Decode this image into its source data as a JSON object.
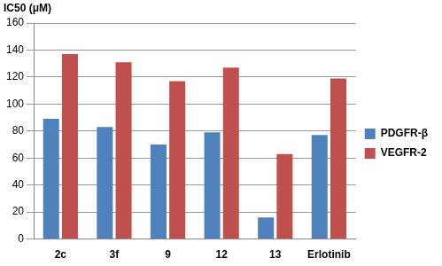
{
  "chart_data": {
    "type": "bar",
    "y_label": "IC50 (μM)",
    "categories": [
      "2c",
      "3f",
      "9",
      "12",
      "13",
      "Erlotinib"
    ],
    "series": [
      {
        "name": "PDGFR-β",
        "color": "#4f81bd",
        "values": [
          89,
          83,
          70,
          79,
          16,
          77
        ]
      },
      {
        "name": "VEGFR-2",
        "color": "#c0504d",
        "values": [
          137,
          131,
          117,
          127,
          63,
          119
        ]
      }
    ],
    "ylim": [
      0,
      160
    ],
    "yticks": [
      0,
      20,
      40,
      60,
      80,
      100,
      120,
      140,
      160
    ],
    "grid": true,
    "legend": "right"
  }
}
